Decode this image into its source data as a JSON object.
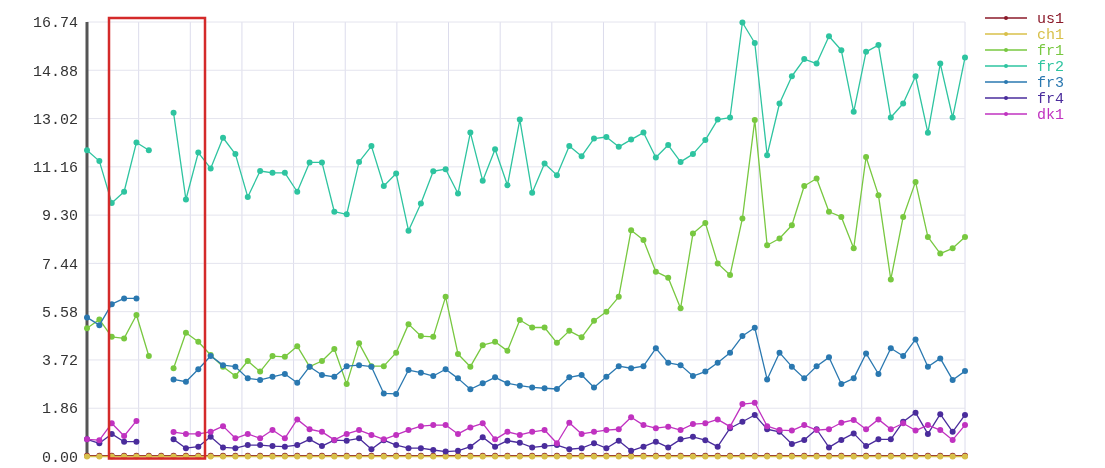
{
  "chart_data": {
    "type": "line",
    "categories": [
      null,
      null,
      null,
      null,
      null,
      null,
      null,
      null,
      null,
      null,
      null,
      null,
      null,
      null,
      null,
      null,
      null,
      null,
      null,
      null,
      null,
      null,
      null,
      null,
      null,
      null,
      null,
      null,
      null,
      null,
      null,
      null,
      null,
      null,
      null,
      null,
      null,
      null,
      null,
      null,
      null,
      null,
      null,
      null,
      null,
      null,
      null,
      null,
      null,
      null,
      null,
      null,
      null,
      null,
      null,
      null,
      null,
      null,
      null,
      null,
      null,
      null,
      null,
      null,
      null,
      null,
      null,
      null,
      null,
      null,
      null,
      null
    ],
    "ylim": [
      0,
      16.74
    ],
    "yticks": [
      {
        "value": 0,
        "label": "0.00"
      },
      1.86,
      3.72,
      5.58,
      7.44,
      {
        "value": 9.3,
        "label": "9.30"
      },
      11.16,
      13.02,
      14.88,
      16.74
    ],
    "grid": true,
    "legend": "top right",
    "marker": "circle",
    "line_style": "solid",
    "series": [
      {
        "name": "us1",
        "color": "#8b1a2a",
        "values": [
          0.03,
          0.03,
          0.03,
          0.03,
          0.03,
          0.03,
          0.03,
          0.03,
          0.03,
          0.03,
          0.03,
          0.03,
          0.03,
          0.03,
          0.03,
          0.03,
          0.03,
          0.03,
          0.03,
          0.03,
          0.03,
          0.03,
          0.03,
          0.03,
          0.03,
          0.03,
          0.03,
          0.03,
          0.03,
          0.03,
          0.03,
          0.03,
          0.03,
          0.03,
          0.03,
          0.03,
          0.03,
          0.03,
          0.03,
          0.03,
          0.03,
          0.03,
          0.03,
          0.03,
          0.03,
          0.03,
          0.03,
          0.03,
          0.03,
          0.03,
          0.03,
          0.03,
          0.03,
          0.03,
          0.03,
          0.03,
          0.03,
          0.03,
          0.03,
          0.03,
          0.03,
          0.03,
          0.03,
          0.03,
          0.03,
          0.03,
          0.03,
          0.03,
          0.03,
          0.03,
          0.03,
          0.03
        ]
      },
      {
        "name": "ch1",
        "color": "#d8c04a",
        "values": [
          0,
          0,
          0,
          0,
          0,
          0,
          0,
          0,
          0,
          0,
          0,
          0,
          0,
          0,
          0,
          0,
          0,
          0,
          0,
          0,
          0,
          0,
          0,
          0,
          0,
          0,
          0,
          0,
          0,
          0,
          0,
          0,
          0,
          0,
          0,
          0,
          0,
          0,
          0,
          0,
          0,
          0,
          0,
          0,
          0,
          0,
          0,
          0,
          0,
          0,
          0,
          0,
          0,
          0,
          0,
          0,
          0,
          0,
          0,
          0,
          0,
          0,
          0,
          0,
          0,
          0,
          0,
          0,
          0,
          0,
          0,
          0
        ]
      },
      {
        "name": "fr1",
        "color": "#78c840",
        "values": [
          4.94,
          5.28,
          4.61,
          4.55,
          5.45,
          3.87,
          null,
          3.4,
          4.77,
          4.42,
          3.91,
          3.46,
          3.1,
          3.68,
          3.27,
          3.87,
          3.84,
          4.25,
          3.46,
          3.68,
          4.14,
          2.79,
          4.36,
          3.48,
          3.48,
          4.0,
          5.1,
          4.64,
          4.61,
          6.15,
          3.95,
          3.46,
          4.29,
          4.42,
          4.07,
          5.26,
          4.97,
          4.97,
          4.38,
          4.84,
          4.59,
          5.23,
          5.58,
          6.15,
          8.72,
          8.34,
          7.12,
          6.89,
          5.71,
          8.59,
          9.0,
          7.44,
          6.99,
          9.17,
          12.96,
          8.14,
          8.4,
          8.91,
          10.42,
          10.71,
          9.43,
          9.23,
          8.02,
          11.54,
          10.07,
          6.82,
          9.23,
          10.58,
          8.46,
          7.82,
          8.02,
          8.46
        ]
      },
      {
        "name": "fr2",
        "color": "#2ec4a0",
        "values": [
          11.8,
          11.38,
          9.77,
          10.2,
          12.1,
          11.8,
          null,
          13.24,
          9.9,
          11.71,
          11.1,
          12.28,
          11.65,
          10.0,
          11.0,
          10.93,
          10.93,
          10.2,
          11.33,
          11.33,
          9.43,
          9.33,
          11.35,
          11.96,
          10.42,
          10.9,
          8.7,
          9.75,
          10.99,
          11.07,
          10.13,
          12.48,
          10.62,
          11.84,
          10.45,
          12.98,
          10.16,
          11.29,
          10.84,
          11.96,
          11.57,
          12.25,
          12.31,
          11.93,
          12.21,
          12.48,
          11.52,
          12.0,
          11.35,
          11.65,
          12.19,
          12.98,
          13.06,
          16.72,
          15.93,
          11.61,
          13.6,
          14.65,
          15.31,
          15.14,
          16.19,
          15.65,
          13.28,
          15.59,
          15.85,
          13.06,
          13.6,
          14.65,
          12.47,
          15.14,
          13.06,
          15.37
        ]
      },
      {
        "name": "fr3",
        "color": "#2a78b0",
        "values": [
          5.36,
          5.06,
          5.87,
          6.09,
          6.09,
          null,
          null,
          2.97,
          2.88,
          3.36,
          3.87,
          3.52,
          3.46,
          3.01,
          2.95,
          3.07,
          3.18,
          2.84,
          3.46,
          3.14,
          3.07,
          3.48,
          3.52,
          3.46,
          2.43,
          2.41,
          3.33,
          3.23,
          3.1,
          3.36,
          3.01,
          2.59,
          2.82,
          3.05,
          2.82,
          2.73,
          2.66,
          2.63,
          2.6,
          3.05,
          3.14,
          2.66,
          3.07,
          3.48,
          3.4,
          3.48,
          4.17,
          3.61,
          3.52,
          3.1,
          3.27,
          3.61,
          4.0,
          4.64,
          4.96,
          2.97,
          4.0,
          3.46,
          3.01,
          3.48,
          3.82,
          2.79,
          3.01,
          3.97,
          3.18,
          4.17,
          3.87,
          4.51,
          3.46,
          3.78,
          2.95,
          3.29
        ]
      },
      {
        "name": "fr4",
        "color": "#4a2c9c",
        "values": [
          0.66,
          0.51,
          0.87,
          0.57,
          0.57,
          null,
          null,
          0.66,
          0.32,
          0.38,
          0.76,
          0.35,
          0.32,
          0.44,
          0.44,
          0.4,
          0.38,
          0.44,
          0.66,
          0.4,
          0.63,
          0.61,
          0.7,
          0.28,
          0.63,
          0.44,
          0.32,
          0.32,
          0.25,
          0.19,
          0.22,
          0.38,
          0.74,
          0.38,
          0.61,
          0.53,
          0.35,
          0.4,
          0.44,
          0.28,
          0.32,
          0.51,
          0.32,
          0.61,
          0.22,
          0.38,
          0.57,
          0.35,
          0.66,
          0.76,
          0.63,
          0.38,
          1.09,
          1.34,
          1.6,
          1.05,
          0.95,
          0.48,
          0.64,
          1.05,
          0.35,
          0.64,
          0.89,
          0.4,
          0.66,
          0.66,
          1.34,
          1.69,
          0.87,
          1.63,
          0.95,
          1.6
        ]
      },
      {
        "name": "dk1",
        "color": "#c032c0",
        "values": [
          0.66,
          0.63,
          1.28,
          0.79,
          1.37,
          null,
          null,
          0.94,
          0.87,
          0.87,
          0.95,
          1.17,
          0.7,
          0.87,
          0.7,
          1.02,
          0.7,
          1.43,
          1.05,
          0.95,
          0.64,
          0.87,
          1.02,
          0.83,
          0.66,
          0.83,
          1.02,
          1.17,
          1.21,
          1.21,
          0.87,
          1.12,
          1.28,
          0.66,
          0.95,
          0.83,
          0.95,
          1.02,
          0.51,
          1.3,
          0.87,
          0.95,
          1.02,
          1.05,
          1.51,
          1.21,
          1.09,
          1.15,
          1.02,
          1.25,
          1.28,
          1.43,
          1.15,
          2.02,
          2.07,
          1.17,
          1.02,
          1.0,
          1.21,
          1.02,
          1.05,
          1.3,
          1.41,
          1.05,
          1.43,
          1.05,
          1.28,
          1.0,
          1.21,
          1.02,
          0.64,
          1.21
        ]
      }
    ]
  }
}
